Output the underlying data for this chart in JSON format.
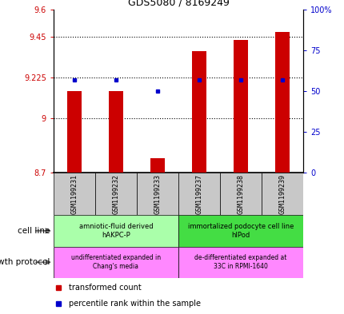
{
  "title": "GDS5080 / 8169249",
  "samples": [
    "GSM1199231",
    "GSM1199232",
    "GSM1199233",
    "GSM1199237",
    "GSM1199238",
    "GSM1199239"
  ],
  "transformed_count": [
    9.15,
    9.15,
    8.78,
    9.37,
    9.43,
    9.475
  ],
  "percentile_rank": [
    57,
    57,
    50,
    57,
    57,
    57
  ],
  "ylim_left": [
    8.7,
    9.6
  ],
  "ylim_right": [
    0,
    100
  ],
  "yticks_left": [
    8.7,
    9.0,
    9.225,
    9.45,
    9.6
  ],
  "ytick_labels_left": [
    "8.7",
    "9",
    "9.225",
    "9.45",
    "9.6"
  ],
  "yticks_right": [
    0,
    25,
    50,
    75,
    100
  ],
  "ytick_labels_right": [
    "0",
    "25",
    "50",
    "75",
    "100%"
  ],
  "hlines": [
    9.225,
    9.45,
    9.0
  ],
  "bar_color": "#cc0000",
  "dot_color": "#0000cc",
  "cell_line_groups": [
    {
      "label": "amniotic-fluid derived\nhAKPC-P",
      "color": "#aaffaa",
      "cols": [
        0,
        1,
        2
      ]
    },
    {
      "label": "immortalized podocyte cell line\nhIPod",
      "color": "#44dd44",
      "cols": [
        3,
        4,
        5
      ]
    }
  ],
  "growth_protocol_groups": [
    {
      "label": "undifferentiated expanded in\nChang's media",
      "color": "#ff88ff",
      "cols": [
        0,
        1,
        2
      ]
    },
    {
      "label": "de-differentiated expanded at\n33C in RPMI-1640",
      "color": "#ff88ff",
      "cols": [
        3,
        4,
        5
      ]
    }
  ],
  "cell_line_label": "cell line",
  "growth_protocol_label": "growth protocol",
  "legend_red_label": "transformed count",
  "legend_blue_label": "percentile rank within the sample",
  "left_axis_color": "#cc0000",
  "right_axis_color": "#0000cc",
  "bar_width": 0.35,
  "bar_bottom": 8.7,
  "sample_box_color": "#c8c8c8",
  "bg_color": "#ffffff"
}
